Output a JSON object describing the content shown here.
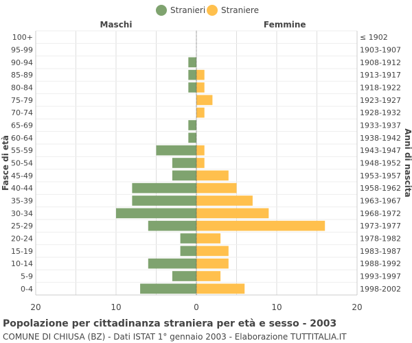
{
  "chart_data": {
    "type": "bar",
    "title": "Popolazione per cittadinanza straniera per età e sesso - 2003",
    "subtitle": "COMUNE DI CHIUSA (BZ) - Dati ISTAT 1° gennaio 2003 - Elaborazione TUTTITALIA.IT",
    "left_header": "Maschi",
    "right_header": "Femmine",
    "ylabel_left": "Fasce di età",
    "ylabel_right": "Anni di nascita",
    "age_groups": [
      "100+",
      "95-99",
      "90-94",
      "85-89",
      "80-84",
      "75-79",
      "70-74",
      "65-69",
      "60-64",
      "55-59",
      "50-54",
      "45-49",
      "40-44",
      "35-39",
      "30-34",
      "25-29",
      "20-24",
      "15-19",
      "10-14",
      "5-9",
      "0-4"
    ],
    "birth_years": [
      "≤ 1902",
      "1903-1907",
      "1908-1912",
      "1913-1917",
      "1918-1922",
      "1923-1927",
      "1928-1932",
      "1933-1937",
      "1938-1942",
      "1943-1947",
      "1948-1952",
      "1953-1957",
      "1958-1962",
      "1963-1967",
      "1968-1972",
      "1973-1977",
      "1978-1982",
      "1983-1987",
      "1988-1992",
      "1993-1997",
      "1998-2002"
    ],
    "x_ticks": [
      20,
      10,
      0,
      10,
      20
    ],
    "xlim": [
      -20,
      20
    ],
    "series": [
      {
        "name": "Stranieri",
        "color": "#7fa36f",
        "side": "left",
        "values": [
          0,
          0,
          1,
          1,
          1,
          0,
          0,
          1,
          1,
          5,
          3,
          3,
          8,
          8,
          10,
          6,
          2,
          2,
          6,
          3,
          7
        ]
      },
      {
        "name": "Straniere",
        "color": "#ffc04d",
        "side": "right",
        "values": [
          0,
          0,
          0,
          1,
          1,
          2,
          1,
          0,
          0,
          1,
          1,
          4,
          5,
          7,
          9,
          16,
          3,
          4,
          4,
          3,
          6
        ]
      }
    ],
    "grid": true,
    "legend_position": "top-center"
  }
}
